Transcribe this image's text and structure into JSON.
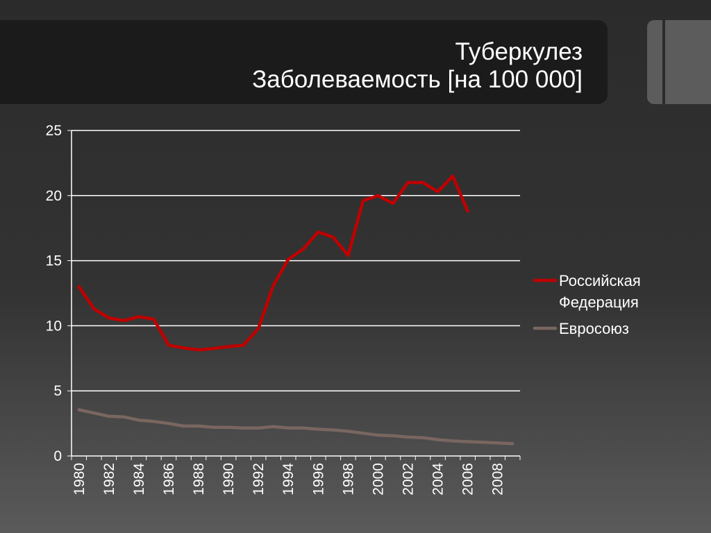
{
  "slide": {
    "title_line1": "Туберкулез",
    "title_line2": "Заболеваемость [на 100 000]"
  },
  "colors": {
    "background": "#303030",
    "title_bar": "#1b1b1b",
    "accent_tab": "#5c5c5c",
    "text": "#ffffff",
    "russia": "#c00000",
    "eu": "#7a6660"
  },
  "chart_data": {
    "type": "line",
    "title": "",
    "xlabel": "",
    "ylabel": "",
    "x": [
      1980,
      1981,
      1982,
      1983,
      1984,
      1985,
      1986,
      1987,
      1988,
      1989,
      1990,
      1991,
      1992,
      1993,
      1994,
      1995,
      1996,
      1997,
      1998,
      1999,
      2000,
      2001,
      2002,
      2003,
      2004,
      2005,
      2006,
      2007,
      2008,
      2009
    ],
    "x_tick_labels": [
      "1980",
      "1982",
      "1984",
      "1986",
      "1988",
      "1990",
      "1992",
      "1994",
      "1996",
      "1998",
      "2000",
      "2002",
      "2004",
      "2006",
      "2008"
    ],
    "ylim": [
      0,
      25
    ],
    "y_ticks": [
      0,
      5,
      10,
      15,
      20,
      25
    ],
    "grid": true,
    "legend_position": "right",
    "series": [
      {
        "name": "Российская Федерация",
        "color": "#c00000",
        "values": [
          13.0,
          11.3,
          10.6,
          10.4,
          10.7,
          10.5,
          8.5,
          8.3,
          8.15,
          8.25,
          8.4,
          8.5,
          9.8,
          13.1,
          15.1,
          15.9,
          17.2,
          16.8,
          15.4,
          19.6,
          20.0,
          19.4,
          21.0,
          21.0,
          20.3,
          21.5,
          18.8,
          null,
          null,
          null
        ]
      },
      {
        "name": "Евросоюз",
        "color": "#7a6660",
        "values": [
          3.55,
          3.3,
          3.05,
          3.0,
          2.75,
          2.65,
          2.5,
          2.3,
          2.3,
          2.2,
          2.2,
          2.15,
          2.15,
          2.25,
          2.15,
          2.15,
          2.05,
          2.0,
          1.9,
          1.75,
          1.6,
          1.55,
          1.45,
          1.4,
          1.25,
          1.15,
          1.1,
          1.05,
          1.0,
          0.95
        ]
      }
    ]
  }
}
